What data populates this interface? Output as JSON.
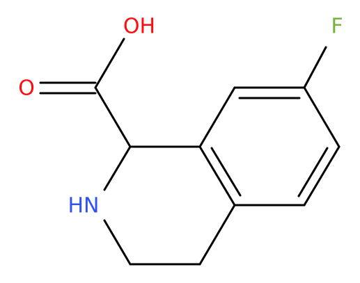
{
  "atoms": {
    "hydroxyl": "OH",
    "carbonyl_oxygen": "O",
    "fluorine": "F",
    "amine": "HN"
  }
}
